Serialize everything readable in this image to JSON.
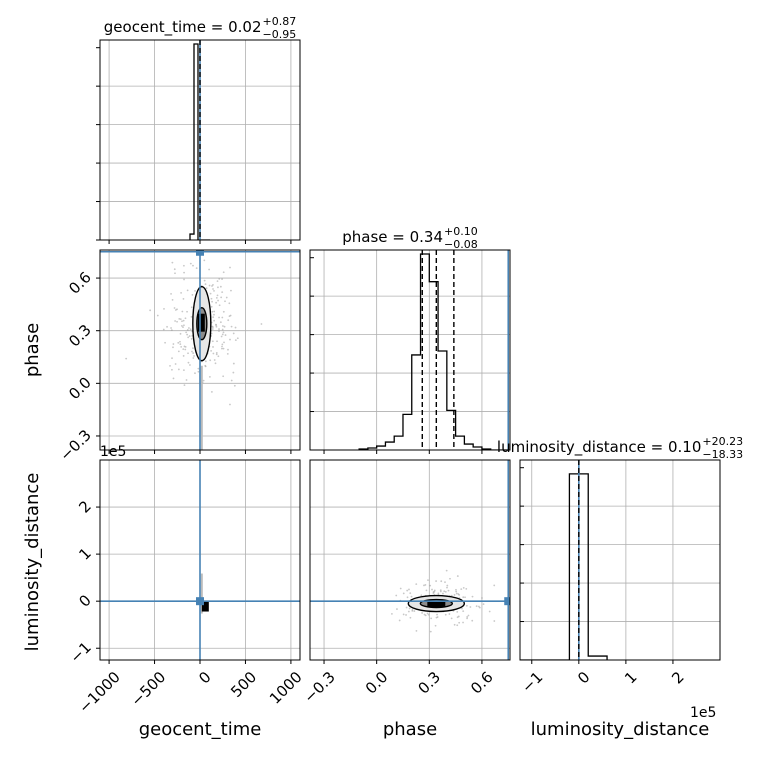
{
  "chart_data": {
    "type": "corner",
    "parameters": [
      "geocent_time",
      "phase",
      "luminosity_distance"
    ],
    "titles": [
      {
        "name": "geocent_time",
        "median": "0.02",
        "plus": "+0.87",
        "minus": "−0.95"
      },
      {
        "name": "phase",
        "median": "0.34",
        "plus": "+0.10",
        "minus": "−0.08"
      },
      {
        "name": "luminosity_distance",
        "median": "0.10",
        "plus": "+20.23",
        "minus": "−18.33"
      }
    ],
    "title_equals": " = ",
    "ranges": {
      "geocent_time": [
        -1100,
        1100
      ],
      "phase": [
        -0.38,
        0.76
      ],
      "luminosity_distance": [
        -125000,
        300000
      ]
    },
    "ticks": {
      "geocent_time": {
        "values": [
          -1000,
          -500,
          0,
          500,
          1000
        ],
        "labels": [
          "−1000",
          "−500",
          "0",
          "500",
          "1000"
        ]
      },
      "phase": {
        "values": [
          -0.3,
          0.0,
          0.3,
          0.6
        ],
        "labels": [
          "−0.3",
          "0.0",
          "0.3",
          "0.6"
        ]
      },
      "luminosity_distance": {
        "values": [
          -100000,
          0,
          100000,
          200000
        ],
        "labels": [
          "−1",
          "0",
          "1",
          "2"
        ]
      }
    },
    "offset_label": "1e5",
    "truths": {
      "geocent_time": 0,
      "phase": 0.75,
      "luminosity_distance": 0
    },
    "quantiles": {
      "phase": [
        0.26,
        0.34,
        0.44
      ]
    },
    "histograms": {
      "geocent_time": {
        "edges": [
          -110,
          -66,
          -22,
          22,
          66,
          110
        ],
        "counts": [
          0.03,
          0.99,
          0,
          0,
          0
        ]
      },
      "phase": {
        "edges": [
          -0.1,
          -0.05,
          0.0,
          0.05,
          0.1,
          0.15,
          0.2,
          0.25,
          0.3,
          0.35,
          0.4,
          0.45,
          0.5,
          0.55,
          0.6,
          0.65,
          0.7,
          0.75
        ],
        "counts": [
          0.005,
          0.01,
          0.02,
          0.04,
          0.07,
          0.18,
          0.48,
          0.99,
          0.85,
          0.5,
          0.2,
          0.07,
          0.03,
          0.015,
          0.005,
          0.0,
          0.0
        ]
      },
      "luminosity_distance": {
        "edges": [
          -125000,
          -20000,
          20000,
          60000
        ],
        "counts": [
          0.0,
          0.94,
          0.02
        ]
      }
    },
    "grid": true
  },
  "colors": {
    "truth": "#4682b4",
    "ink": "#000000",
    "grid": "#b0b0b0",
    "scatter": "#9a9a9a"
  }
}
